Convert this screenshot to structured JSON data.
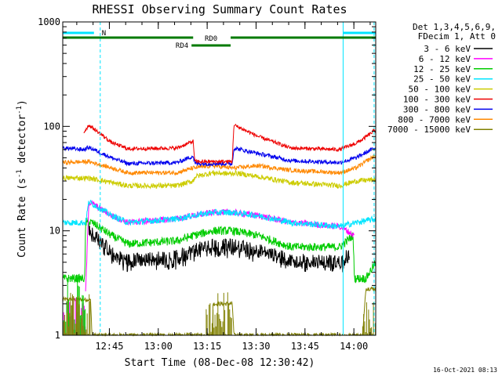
{
  "chart_data": {
    "type": "line",
    "title": "RHESSI Observing Summary Count Rates",
    "xlabel": "Start Time (08-Dec-08 12:30:42)",
    "ylabel": "Count Rate (s⁻¹ detector⁻¹)",
    "ylabel_parts": {
      "main": "Count Rate (s",
      "exp1": "-1",
      "mid": " detector",
      "exp2": "-1",
      "end": ")"
    },
    "y_scale": "log",
    "ylim": [
      1,
      1000
    ],
    "y_ticks": [
      {
        "value": 1,
        "label": "1"
      },
      {
        "value": 10,
        "label": "10"
      },
      {
        "value": 100,
        "label": "100"
      },
      {
        "value": 1000,
        "label": "1000"
      }
    ],
    "x_range_minutes": [
      0,
      96
    ],
    "x_ticks": [
      {
        "minute": 14.3,
        "label": "12:45"
      },
      {
        "minute": 29.3,
        "label": "13:00"
      },
      {
        "minute": 44.3,
        "label": "13:15"
      },
      {
        "minute": 59.3,
        "label": "13:30"
      },
      {
        "minute": 74.3,
        "label": "13:45"
      },
      {
        "minute": 89.3,
        "label": "14:00"
      }
    ],
    "legend_header": [
      "Det 1,3,4,5,6,9,",
      "FDecim 1, Att 0"
    ],
    "legend_placement": "right",
    "series": [
      {
        "name": "3 - 6 keV",
        "color": "#000000",
        "key": "s36"
      },
      {
        "name": "6 - 12 keV",
        "color": "#ff00ff",
        "key": "s612"
      },
      {
        "name": "12 - 25 keV",
        "color": "#00cc00",
        "key": "s1225"
      },
      {
        "name": "25 - 50 keV",
        "color": "#00e5ff",
        "key": "s2550"
      },
      {
        "name": "50 - 100 keV",
        "color": "#cccc00",
        "key": "s50100"
      },
      {
        "name": "100 - 300 keV",
        "color": "#ee0000",
        "key": "s100300"
      },
      {
        "name": "300 - 800 keV",
        "color": "#0000ee",
        "key": "s300800"
      },
      {
        "name": "800 - 7000 keV",
        "color": "#ff8800",
        "key": "s8007000"
      },
      {
        "name": "7000 - 15000 keV",
        "color": "#808000",
        "key": "s700015000"
      }
    ],
    "profiles": {
      "note": "approximate count rates at minute breakpoints (log scale values)",
      "s100300": [
        [
          6.5,
          88
        ],
        [
          8,
          103
        ],
        [
          15,
          70
        ],
        [
          20,
          61
        ],
        [
          35,
          62
        ],
        [
          40,
          72
        ],
        [
          40.5,
          46
        ],
        [
          52,
          46
        ],
        [
          52.5,
          103
        ],
        [
          60,
          80
        ],
        [
          70,
          62
        ],
        [
          85,
          60
        ],
        [
          90,
          69
        ],
        [
          92,
          75
        ],
        [
          96,
          93
        ]
      ],
      "s300800": [
        [
          0,
          62
        ],
        [
          6.5,
          60
        ],
        [
          8,
          63
        ],
        [
          15,
          50
        ],
        [
          20,
          44
        ],
        [
          35,
          45
        ],
        [
          40,
          52
        ],
        [
          40.5,
          44
        ],
        [
          52,
          44
        ],
        [
          52.5,
          62
        ],
        [
          60,
          55
        ],
        [
          70,
          47
        ],
        [
          85,
          45
        ],
        [
          90,
          50
        ],
        [
          96,
          63
        ]
      ],
      "s8007000": [
        [
          0,
          45
        ],
        [
          8,
          46
        ],
        [
          15,
          40
        ],
        [
          20,
          36
        ],
        [
          35,
          36
        ],
        [
          40,
          40
        ],
        [
          46,
          42
        ],
        [
          52,
          40
        ],
        [
          52.5,
          40
        ],
        [
          60,
          42
        ],
        [
          70,
          38
        ],
        [
          85,
          36
        ],
        [
          90,
          40
        ],
        [
          96,
          53
        ]
      ],
      "s50100": [
        [
          0,
          32
        ],
        [
          8,
          32
        ],
        [
          15,
          29
        ],
        [
          20,
          27
        ],
        [
          35,
          27
        ],
        [
          40,
          30
        ],
        [
          40.5,
          33
        ],
        [
          46,
          36
        ],
        [
          52,
          35
        ],
        [
          52.5,
          36
        ],
        [
          60,
          33
        ],
        [
          70,
          29
        ],
        [
          85,
          27
        ],
        [
          90,
          30
        ],
        [
          96,
          31
        ]
      ],
      "s2550": [
        [
          0,
          12
        ],
        [
          7,
          12
        ],
        [
          8,
          19
        ],
        [
          12,
          16
        ],
        [
          15,
          14
        ],
        [
          20,
          12
        ],
        [
          35,
          13
        ],
        [
          40,
          14
        ],
        [
          46,
          15
        ],
        [
          52,
          15
        ],
        [
          60,
          14
        ],
        [
          70,
          12
        ],
        [
          85,
          11
        ],
        [
          90,
          12
        ],
        [
          96,
          13
        ]
      ],
      "s612": [
        [
          7,
          2.5
        ],
        [
          8,
          19
        ],
        [
          12,
          16
        ],
        [
          15,
          14
        ],
        [
          20,
          12
        ],
        [
          35,
          13
        ],
        [
          40,
          14
        ],
        [
          46,
          15
        ],
        [
          52,
          15
        ],
        [
          60,
          14
        ],
        [
          70,
          12
        ],
        [
          85,
          11
        ],
        [
          89.5,
          9
        ]
      ],
      "s1225": [
        [
          0,
          3.5
        ],
        [
          6.8,
          3.5
        ],
        [
          7,
          12
        ],
        [
          9,
          12
        ],
        [
          15,
          9
        ],
        [
          20,
          7.5
        ],
        [
          35,
          8
        ],
        [
          40,
          9
        ],
        [
          46,
          10
        ],
        [
          52,
          10
        ],
        [
          60,
          9
        ],
        [
          70,
          7
        ],
        [
          85,
          7
        ],
        [
          89,
          9
        ],
        [
          89.5,
          3.5
        ],
        [
          93,
          3.5
        ],
        [
          96,
          5
        ]
      ],
      "s36": [
        [
          8,
          10
        ],
        [
          12,
          8
        ],
        [
          15,
          6
        ],
        [
          20,
          5.2
        ],
        [
          35,
          5.6
        ],
        [
          40,
          6.5
        ],
        [
          46,
          7.2
        ],
        [
          52,
          7.2
        ],
        [
          60,
          6.5
        ],
        [
          70,
          5.2
        ],
        [
          85,
          5
        ],
        [
          88,
          6
        ]
      ],
      "s700015000": [
        [
          0,
          2.2
        ],
        [
          8.5,
          2.2
        ],
        [
          9,
          1
        ],
        [
          46,
          1
        ],
        [
          46,
          2
        ],
        [
          52,
          2
        ],
        [
          52.5,
          1
        ],
        [
          92,
          1
        ],
        [
          93,
          2.8
        ],
        [
          96,
          2.8
        ]
      ]
    }
  },
  "overlays": {
    "saa_label": "N",
    "rd0_label": "RD0",
    "rd4_label": "RD4",
    "cyan_markers": [
      0,
      11.5,
      86,
      95.5
    ],
    "eclipse_color": "#00e5ff",
    "rd_color": "#007a00"
  },
  "footer": {
    "timestamp": "16-Oct-2021 08:13"
  }
}
